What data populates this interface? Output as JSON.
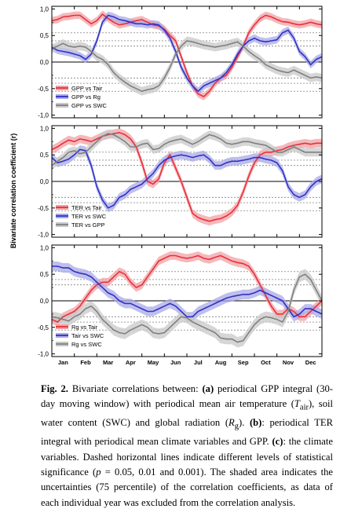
{
  "figure": {
    "ylabel": "Bivariate correlation coefficient (r)",
    "months": [
      "Jan",
      "Feb",
      "Mar",
      "Apr",
      "May",
      "Jun",
      "Jul",
      "Aug",
      "Sep",
      "Oct",
      "Nov",
      "Dec"
    ],
    "yticks": [
      "1,0",
      "0,5",
      "0,0",
      "-0,5",
      "-1,0"
    ]
  },
  "chart_data": [
    {
      "type": "line",
      "panel": "a",
      "x": [
        0,
        1,
        2,
        3,
        4,
        5,
        6,
        7,
        8,
        9,
        10,
        11,
        12,
        13,
        14,
        15,
        16,
        17,
        18,
        19,
        20,
        21,
        22,
        23,
        24,
        25,
        26,
        27,
        28,
        29,
        30,
        31,
        32,
        33,
        34,
        35,
        36,
        37,
        38,
        39,
        40,
        41,
        42,
        43,
        44,
        45,
        46,
        47,
        48
      ],
      "ylim": [
        -1.05,
        1.05
      ],
      "xlim": [
        0,
        48
      ],
      "xticks": [
        "Jan",
        "Feb",
        "Mar",
        "Apr",
        "May",
        "Jun",
        "Jul",
        "Aug",
        "Sep",
        "Oct",
        "Nov",
        "Dec"
      ],
      "yticks": [
        1.0,
        0.5,
        0.0,
        -0.5,
        -1.0
      ],
      "significance_lines": [
        0.3,
        0.4,
        0.55,
        -0.3,
        -0.4,
        -0.55
      ],
      "series": [
        {
          "name": "GPP vs Tair",
          "color": "#e8303a",
          "values": [
            0.78,
            0.8,
            0.85,
            0.86,
            0.88,
            0.88,
            0.8,
            0.72,
            0.78,
            0.9,
            0.82,
            0.75,
            0.7,
            0.72,
            0.75,
            0.78,
            0.8,
            0.75,
            0.7,
            0.68,
            0.62,
            0.5,
            0.4,
            0.1,
            -0.2,
            -0.45,
            -0.6,
            -0.65,
            -0.55,
            -0.4,
            -0.3,
            -0.25,
            -0.1,
            0.1,
            0.3,
            0.55,
            0.7,
            0.82,
            0.88,
            0.85,
            0.8,
            0.76,
            0.75,
            0.72,
            0.7,
            0.72,
            0.75,
            0.72,
            0.7
          ],
          "band": 0.07
        },
        {
          "name": "GPP vs Rg",
          "color": "#3030c8",
          "values": [
            0.28,
            0.22,
            0.2,
            0.18,
            0.15,
            0.12,
            0.05,
            0.15,
            0.4,
            0.75,
            0.88,
            0.85,
            0.8,
            0.78,
            0.75,
            0.72,
            0.72,
            0.7,
            0.72,
            0.7,
            0.6,
            0.45,
            0.2,
            -0.1,
            -0.3,
            -0.45,
            -0.55,
            -0.45,
            -0.4,
            -0.35,
            -0.3,
            -0.2,
            -0.05,
            0.15,
            0.3,
            0.4,
            0.45,
            0.4,
            0.38,
            0.4,
            0.42,
            0.55,
            0.6,
            0.45,
            0.2,
            0.1,
            -0.05,
            0.05,
            0.1
          ],
          "band": 0.07
        },
        {
          "name": "GPP vs SWC",
          "color": "#808080",
          "values": [
            0.25,
            0.3,
            0.35,
            0.3,
            0.28,
            0.3,
            0.28,
            0.2,
            0.1,
            0.05,
            -0.05,
            -0.2,
            -0.3,
            -0.38,
            -0.45,
            -0.5,
            -0.55,
            -0.52,
            -0.5,
            -0.45,
            -0.3,
            -0.1,
            0.15,
            0.3,
            0.4,
            0.38,
            0.35,
            0.32,
            0.3,
            0.28,
            0.3,
            0.32,
            0.35,
            0.38,
            0.3,
            0.2,
            0.12,
            0.05,
            -0.05,
            -0.1,
            -0.15,
            -0.18,
            -0.2,
            -0.15,
            -0.2,
            -0.25,
            -0.3,
            -0.28,
            -0.3
          ],
          "band": 0.08
        }
      ]
    },
    {
      "type": "line",
      "panel": "b",
      "x": [
        0,
        1,
        2,
        3,
        4,
        5,
        6,
        7,
        8,
        9,
        10,
        11,
        12,
        13,
        14,
        15,
        16,
        17,
        18,
        19,
        20,
        21,
        22,
        23,
        24,
        25,
        26,
        27,
        28,
        29,
        30,
        31,
        32,
        33,
        34,
        35,
        36,
        37,
        38,
        39,
        40,
        41,
        42,
        43,
        44,
        45,
        46,
        47,
        48
      ],
      "ylim": [
        -1.05,
        1.05
      ],
      "xlim": [
        0,
        48
      ],
      "xticks": [
        "Jan",
        "Feb",
        "Mar",
        "Apr",
        "May",
        "Jun",
        "Jul",
        "Aug",
        "Sep",
        "Oct",
        "Nov",
        "Dec"
      ],
      "yticks": [
        1.0,
        0.5,
        0.0,
        -0.5,
        -1.0
      ],
      "significance_lines": [
        0.3,
        0.4,
        0.55,
        -0.3,
        -0.4,
        -0.55
      ],
      "series": [
        {
          "name": "TER vs Tair",
          "color": "#e8303a",
          "values": [
            0.6,
            0.65,
            0.72,
            0.78,
            0.75,
            0.8,
            0.78,
            0.75,
            0.8,
            0.85,
            0.88,
            0.9,
            0.92,
            0.88,
            0.8,
            0.65,
            0.35,
            0.0,
            -0.05,
            0.05,
            0.35,
            0.5,
            0.25,
            0.0,
            -0.3,
            -0.6,
            -0.68,
            -0.72,
            -0.75,
            -0.72,
            -0.7,
            -0.65,
            -0.58,
            -0.45,
            -0.2,
            0.1,
            0.35,
            0.5,
            0.55,
            0.55,
            0.58,
            0.6,
            0.65,
            0.68,
            0.7,
            0.72,
            0.7,
            0.72,
            0.72
          ],
          "band": 0.08
        },
        {
          "name": "TER vs SWC",
          "color": "#3030c8",
          "values": [
            0.45,
            0.35,
            0.38,
            0.42,
            0.5,
            0.6,
            0.58,
            0.3,
            -0.1,
            -0.35,
            -0.5,
            -0.45,
            -0.3,
            -0.25,
            -0.15,
            -0.1,
            -0.05,
            0.05,
            0.15,
            0.3,
            0.4,
            0.45,
            0.48,
            0.5,
            0.48,
            0.45,
            0.48,
            0.5,
            0.42,
            0.3,
            0.3,
            0.35,
            0.38,
            0.38,
            0.4,
            0.42,
            0.45,
            0.45,
            0.42,
            0.4,
            0.35,
            0.2,
            -0.1,
            -0.25,
            -0.3,
            -0.25,
            -0.1,
            0.0,
            0.05
          ],
          "band": 0.08
        },
        {
          "name": "TER vs GPP",
          "color": "#808080",
          "values": [
            0.3,
            0.38,
            0.45,
            0.55,
            0.58,
            0.52,
            0.55,
            0.65,
            0.75,
            0.85,
            0.9,
            0.88,
            0.82,
            0.75,
            0.65,
            0.65,
            0.7,
            0.72,
            0.6,
            0.62,
            0.7,
            0.75,
            0.78,
            0.8,
            0.75,
            0.7,
            0.75,
            0.82,
            0.88,
            0.85,
            0.8,
            0.72,
            0.7,
            0.72,
            0.75,
            0.75,
            0.72,
            0.7,
            0.68,
            0.62,
            0.55,
            0.55,
            0.6,
            0.65,
            0.6,
            0.55,
            0.55,
            0.55,
            0.55
          ],
          "band": 0.08
        }
      ]
    },
    {
      "type": "line",
      "panel": "c",
      "x": [
        0,
        1,
        2,
        3,
        4,
        5,
        6,
        7,
        8,
        9,
        10,
        11,
        12,
        13,
        14,
        15,
        16,
        17,
        18,
        19,
        20,
        21,
        22,
        23,
        24,
        25,
        26,
        27,
        28,
        29,
        30,
        31,
        32,
        33,
        34,
        35,
        36,
        37,
        38,
        39,
        40,
        41,
        42,
        43,
        44,
        45,
        46,
        47,
        48
      ],
      "ylim": [
        -1.05,
        1.05
      ],
      "xlim": [
        0,
        48
      ],
      "xticks": [
        "Jan",
        "Feb",
        "Mar",
        "Apr",
        "May",
        "Jun",
        "Jul",
        "Aug",
        "Sep",
        "Oct",
        "Nov",
        "Dec"
      ],
      "yticks": [
        1.0,
        0.5,
        0.0,
        -0.5,
        -1.0
      ],
      "significance_lines": [
        0.3,
        0.4,
        0.55,
        -0.3,
        -0.4,
        -0.55
      ],
      "series": [
        {
          "name": "Rg vs Tair",
          "color": "#e8303a",
          "values": [
            -0.35,
            -0.4,
            -0.3,
            -0.25,
            -0.2,
            -0.1,
            0.05,
            0.2,
            0.3,
            0.35,
            0.35,
            0.45,
            0.55,
            0.5,
            0.35,
            0.25,
            0.3,
            0.45,
            0.6,
            0.75,
            0.8,
            0.85,
            0.85,
            0.82,
            0.8,
            0.82,
            0.85,
            0.8,
            0.78,
            0.82,
            0.85,
            0.8,
            0.75,
            0.72,
            0.7,
            0.65,
            0.5,
            0.3,
            0.1,
            -0.1,
            -0.25,
            -0.25,
            -0.15,
            -0.2,
            -0.3,
            -0.3,
            -0.2,
            -0.1,
            0.0
          ],
          "band": 0.08
        },
        {
          "name": "Tair vs SWC",
          "color": "#3030c8",
          "values": [
            0.65,
            0.65,
            0.62,
            0.62,
            0.55,
            0.52,
            0.5,
            0.45,
            0.35,
            0.25,
            0.15,
            0.1,
            0.0,
            -0.05,
            -0.05,
            -0.1,
            -0.15,
            -0.2,
            -0.2,
            -0.15,
            -0.1,
            -0.05,
            -0.1,
            -0.2,
            -0.3,
            -0.3,
            -0.2,
            -0.15,
            -0.1,
            -0.05,
            0.0,
            0.05,
            0.08,
            0.1,
            0.12,
            0.12,
            0.15,
            0.2,
            0.15,
            0.1,
            0.05,
            0.0,
            -0.15,
            -0.3,
            -0.25,
            -0.15,
            -0.15,
            -0.2,
            -0.25
          ],
          "band": 0.09
        },
        {
          "name": "Rg vs SWC",
          "color": "#808080",
          "values": [
            -0.3,
            -0.32,
            -0.35,
            -0.38,
            -0.3,
            -0.25,
            -0.15,
            -0.1,
            -0.2,
            -0.35,
            -0.45,
            -0.55,
            -0.6,
            -0.62,
            -0.55,
            -0.5,
            -0.45,
            -0.5,
            -0.6,
            -0.62,
            -0.6,
            -0.5,
            -0.4,
            -0.3,
            -0.32,
            -0.4,
            -0.45,
            -0.5,
            -0.55,
            -0.6,
            -0.7,
            -0.72,
            -0.72,
            -0.78,
            -0.75,
            -0.6,
            -0.45,
            -0.35,
            -0.3,
            -0.32,
            -0.35,
            -0.4,
            -0.2,
            0.2,
            0.45,
            0.5,
            0.4,
            0.2,
            0.0
          ],
          "band": 0.1
        }
      ]
    }
  ],
  "caption": {
    "label": "Fig. 2.",
    "html": "Bivariate correlations between: <b>(a)</b> periodical GPP integral (30-day moving window) with periodical mean air temperature (<i>T</i><sub>air</sub>), soil water content (SWC) and global radiation (<i>R</i><sub>g</sub>). <b>(b)</b>: periodical TER integral with periodical mean climate variables and GPP. <b>(c)</b>: the climate variables. Dashed horizontal lines indicate different levels of statistical significance (<i>p</i> = 0.05, 0.01 and 0.001). The shaded area indicates the uncertainties (75 percentile) of the correlation coefficients, as data of each individual year was excluded from the correlation analysis."
  }
}
